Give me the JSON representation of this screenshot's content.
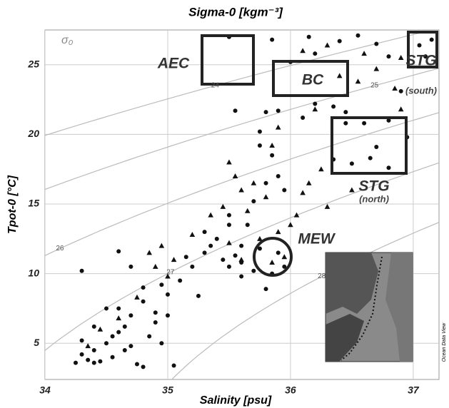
{
  "chart_data": {
    "type": "scatter",
    "title": "Sigma-0 [kgm⁻³]",
    "x_label": "Salinity [psu]",
    "y_label": "Tpot-0 [°C]",
    "contour_label": "σ₀",
    "isopycnals": [
      24,
      25,
      26,
      27,
      28
    ],
    "annotations": [
      "AEC",
      "BC",
      "STG",
      "(south)",
      "STG",
      "(north)",
      "MEW"
    ],
    "credit": "Ocean Data View",
    "xlim": [
      34,
      37.21
    ],
    "ylim": [
      2.4,
      27.5
    ],
    "xticks": [
      34,
      35,
      36,
      37
    ],
    "yticks": [
      5,
      10,
      15,
      20,
      25
    ],
    "grid": true,
    "series": [
      {
        "marker": "circle",
        "color": "#111111",
        "x": [
          34.25,
          34.3,
          34.3,
          34.35,
          34.4,
          34.45,
          34.5,
          34.55,
          34.6,
          34.65,
          34.7,
          34.75,
          34.8,
          34.85,
          34.9,
          34.7,
          34.6,
          34.8,
          34.9,
          35.0,
          35.0,
          35.05,
          34.95,
          34.3,
          34.6,
          34.7,
          34.8,
          35.1,
          35.2,
          35.3,
          35.4,
          35.5,
          35.5,
          35.3,
          35.6,
          35.45,
          35.5,
          35.55,
          35.6,
          35.7,
          35.75,
          35.6,
          35.8,
          35.65,
          35.7,
          35.8,
          35.9,
          35.95,
          35.85,
          35.75,
          35.8,
          35.9,
          35.75,
          35.55,
          36.1,
          36.2,
          36.35,
          36.45,
          36.0,
          35.85,
          36.15,
          36.4,
          36.55,
          36.2,
          35.5,
          36.7,
          36.8,
          36.9,
          36.95,
          36.8,
          36.6,
          36.7,
          36.35,
          36.5,
          36.65,
          36.8,
          37.05,
          37.1,
          37.15,
          35.9,
          35.85,
          35.95,
          34.4,
          34.55,
          34.65,
          34.95,
          35.15,
          35.25,
          34.5,
          34.4,
          35.35,
          36.45
        ],
        "values": [
          3.6,
          4.2,
          5.2,
          3.8,
          4.5,
          3.7,
          5.0,
          4.0,
          5.8,
          6.2,
          4.8,
          3.5,
          3.3,
          5.5,
          6.5,
          7.0,
          7.5,
          8.0,
          7.2,
          8.5,
          7.0,
          3.4,
          5.0,
          10.2,
          11.6,
          10.5,
          9.0,
          9.5,
          10.5,
          11.5,
          12.5,
          13.5,
          14.2,
          13.0,
          12.0,
          11.0,
          10.5,
          11.3,
          10.8,
          10.2,
          11.8,
          9.8,
          8.9,
          13.5,
          15.2,
          16.5,
          17.0,
          16.0,
          18.5,
          20.2,
          21.6,
          21.7,
          19.2,
          21.7,
          21.2,
          22.2,
          22.0,
          21.6,
          25.2,
          26.8,
          27.0,
          26.7,
          27.1,
          25.8,
          27.0,
          26.5,
          25.6,
          23.1,
          19.8,
          21.0,
          20.8,
          19.1,
          18.2,
          17.9,
          18.3,
          17.6,
          26.4,
          25.6,
          26.8,
          11.5,
          10.0,
          10.5,
          3.6,
          5.5,
          4.5,
          9.2,
          11.2,
          8.4,
          7.5,
          6.2,
          12.0,
          20.8
        ]
      },
      {
        "marker": "triangle",
        "color": "#111111",
        "x": [
          34.35,
          34.45,
          34.6,
          34.75,
          34.9,
          35.0,
          35.2,
          35.35,
          35.45,
          35.6,
          35.7,
          35.65,
          35.5,
          35.6,
          35.8,
          35.75,
          35.9,
          36.0,
          36.05,
          36.1,
          36.15,
          36.3,
          36.5,
          35.5,
          35.85,
          35.9,
          36.2,
          36.4,
          36.55,
          36.7,
          36.85,
          36.9,
          36.1,
          36.3,
          36.6,
          36.9,
          35.85,
          35.95,
          34.85,
          34.95,
          35.05,
          36.25,
          35.55
        ],
        "values": [
          4.8,
          6.0,
          6.8,
          8.3,
          10.5,
          9.8,
          12.8,
          14.2,
          14.8,
          16.0,
          16.5,
          14.5,
          12.2,
          11.0,
          15.5,
          12.5,
          13.0,
          13.5,
          14.2,
          15.8,
          16.5,
          14.8,
          16.0,
          18.0,
          19.2,
          20.5,
          21.8,
          24.2,
          23.8,
          24.7,
          23.3,
          21.8,
          26.0,
          26.4,
          25.8,
          25.5,
          10.8,
          11.2,
          11.5,
          12.0,
          11.0,
          17.5,
          17.0
        ]
      }
    ]
  }
}
